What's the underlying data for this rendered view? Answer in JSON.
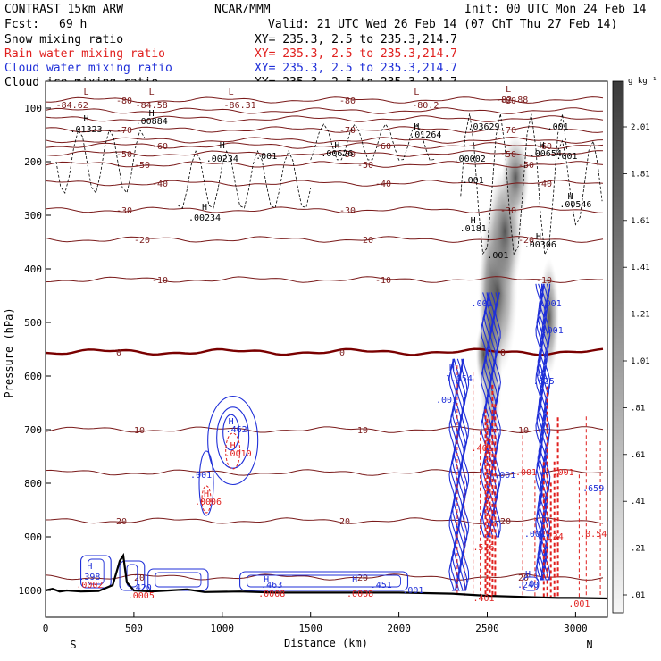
{
  "header": {
    "title": "CONTRAST 15km ARW",
    "center": "NCAR/MMM",
    "init": "Init: 00 UTC Mon 24 Feb 14",
    "fcst_label": "Fcst:",
    "fcst_value": "69 h",
    "valid": "Valid: 21 UTC Wed 26 Feb 14 (07 ChT Thu 27 Feb 14)"
  },
  "fields": [
    {
      "name": "Snow mixing ratio",
      "xy": "XY= 235.3,  2.5 to 235.3,214.7",
      "color": "#000000"
    },
    {
      "name": "Rain water mixing ratio",
      "xy": "XY= 235.3,  2.5 to 235.3,214.7",
      "color": "#e0201e"
    },
    {
      "name": "Cloud water mixing ratio",
      "xy": "XY= 235.3,  2.5 to 235.3,214.7",
      "color": "#1f2fd8"
    },
    {
      "name": "Cloud ice mixing ratio",
      "xy": "XY= 235.3,  2.5 to 235.3,214.7",
      "color": "#000000"
    }
  ],
  "colors": {
    "temperature": "#7a1a1a",
    "zero_isotherm": "#7a0000",
    "rain": "#e0201e",
    "cloud": "#1f2fd8",
    "ice": "#000000",
    "terrain": "#000000"
  },
  "chart_data": {
    "type": "cross-section",
    "xlabel": "Distance (km)",
    "ylabel": "Pressure (hPa)",
    "xlim": [
      0,
      3180
    ],
    "ylim": [
      1050,
      50
    ],
    "x_ticks": [
      0,
      500,
      1000,
      1500,
      2000,
      2500,
      3000
    ],
    "y_ticks": [
      100,
      200,
      300,
      400,
      500,
      600,
      700,
      800,
      900,
      1000
    ],
    "end_labels": {
      "left": "S",
      "right": "N"
    },
    "colorbar": {
      "unit": "g kg⁻¹",
      "ticks": [
        "2.01",
        "1.81",
        "1.61",
        "1.41",
        "1.21",
        "1.01",
        ".81",
        ".61",
        ".41",
        ".21",
        ".01"
      ],
      "range": [
        0.01,
        2.11
      ]
    },
    "terrain": {
      "x": [
        0,
        40,
        80,
        120,
        200,
        300,
        380,
        420,
        440,
        460,
        500,
        600,
        700,
        800,
        900,
        1100,
        1300,
        1600,
        2000,
        2300,
        2500,
        2700,
        2900,
        3000,
        3180
      ],
      "p": [
        1000,
        997,
        1002,
        1000,
        1002,
        1001,
        990,
        945,
        935,
        985,
        1000,
        1002,
        1000,
        998,
        1003,
        1002,
        1004,
        1004,
        1004,
        1006,
        1010,
        1012,
        1014,
        1014,
        1015
      ]
    },
    "isotherms": [
      {
        "temp": "-80",
        "p": 85
      },
      {
        "temp": "",
        "p": 105
      },
      {
        "temp": "",
        "p": 120
      },
      {
        "temp": "-70",
        "p": 140
      },
      {
        "temp": "",
        "p": 160
      },
      {
        "temp": "-60",
        "p": 170
      },
      {
        "temp": "-50",
        "p": 185
      },
      {
        "temp": "-50",
        "p": 205
      },
      {
        "temp": "-40",
        "p": 240
      },
      {
        "temp": "-30",
        "p": 290
      },
      {
        "temp": "-20",
        "p": 345
      },
      {
        "temp": "-10",
        "p": 420
      },
      {
        "temp": "0",
        "p": 555
      },
      {
        "temp": "10",
        "p": 700
      },
      {
        "temp": "",
        "p": 780
      },
      {
        "temp": "20",
        "p": 870
      },
      {
        "temp": "20",
        "p": 975
      }
    ],
    "labels": [
      {
        "text": "L",
        "x": 230,
        "p": 75,
        "kind": "temp"
      },
      {
        "text": "-84.62",
        "x": 150,
        "p": 100,
        "kind": "temp"
      },
      {
        "text": "L",
        "x": 600,
        "p": 75,
        "kind": "temp"
      },
      {
        "text": "-84.58",
        "x": 600,
        "p": 100,
        "kind": "temp"
      },
      {
        "text": "L",
        "x": 1050,
        "p": 75,
        "kind": "temp"
      },
      {
        "text": "-86.31",
        "x": 1100,
        "p": 100,
        "kind": "temp"
      },
      {
        "text": "L",
        "x": 2100,
        "p": 75,
        "kind": "temp"
      },
      {
        "text": "-80.2",
        "x": 2150,
        "p": 100,
        "kind": "temp"
      },
      {
        "text": "L",
        "x": 2620,
        "p": 70,
        "kind": "temp"
      },
      {
        "text": "-82.88",
        "x": 2640,
        "p": 90,
        "kind": "temp"
      },
      {
        "text": "H",
        "x": 230,
        "p": 125,
        "kind": "ice"
      },
      {
        "text": ".01323",
        "x": 230,
        "p": 145,
        "kind": "ice"
      },
      {
        "text": "H",
        "x": 600,
        "p": 115,
        "kind": "ice"
      },
      {
        "text": ".00884",
        "x": 600,
        "p": 130,
        "kind": "ice"
      },
      {
        "text": "H",
        "x": 1000,
        "p": 175,
        "kind": "ice"
      },
      {
        "text": ".00234",
        "x": 1000,
        "p": 200,
        "kind": "ice"
      },
      {
        "text": ".001",
        "x": 1250,
        "p": 195,
        "kind": "ice"
      },
      {
        "text": "H",
        "x": 1650,
        "p": 175,
        "kind": "ice"
      },
      {
        "text": ".00626",
        "x": 1650,
        "p": 190,
        "kind": "ice"
      },
      {
        "text": "H",
        "x": 2100,
        "p": 140,
        "kind": "ice"
      },
      {
        "text": ".01264",
        "x": 2150,
        "p": 155,
        "kind": "ice"
      },
      {
        "text": ".03629",
        "x": 2480,
        "p": 140,
        "kind": "ice"
      },
      {
        "text": ".00002",
        "x": 2400,
        "p": 200,
        "kind": "ice"
      },
      {
        "text": ".001",
        "x": 2420,
        "p": 240,
        "kind": "ice"
      },
      {
        "text": "H",
        "x": 2810,
        "p": 175,
        "kind": "ice"
      },
      {
        "text": ".00654",
        "x": 2830,
        "p": 190,
        "kind": "ice"
      },
      {
        "text": ".001",
        "x": 2900,
        "p": 140,
        "kind": "ice"
      },
      {
        "text": "H",
        "x": 900,
        "p": 290,
        "kind": "ice"
      },
      {
        "text": ".00234",
        "x": 900,
        "p": 310,
        "kind": "ice"
      },
      {
        "text": "H",
        "x": 2420,
        "p": 315,
        "kind": "ice"
      },
      {
        "text": ".0181",
        "x": 2420,
        "p": 330,
        "kind": "ice"
      },
      {
        "text": ".001",
        "x": 2560,
        "p": 380,
        "kind": "ice"
      },
      {
        "text": "H",
        "x": 2790,
        "p": 345,
        "kind": "ice"
      },
      {
        "text": ".00306",
        "x": 2800,
        "p": 360,
        "kind": "ice"
      },
      {
        "text": "H",
        "x": 2970,
        "p": 270,
        "kind": "ice"
      },
      {
        "text": ".00546",
        "x": 3000,
        "p": 285,
        "kind": "ice"
      },
      {
        "text": ".001",
        "x": 2950,
        "p": 195,
        "kind": "ice"
      },
      {
        "text": "H",
        "x": 2300,
        "p": 590,
        "kind": "cloud"
      },
      {
        "text": "1.054",
        "x": 2340,
        "p": 610,
        "kind": "cloud"
      },
      {
        "text": ".001",
        "x": 2270,
        "p": 650,
        "kind": "cloud"
      },
      {
        "text": ".001",
        "x": 2470,
        "p": 470,
        "kind": "cloud"
      },
      {
        "text": ".001",
        "x": 2860,
        "p": 470,
        "kind": "cloud"
      },
      {
        "text": ".001",
        "x": 2870,
        "p": 520,
        "kind": "cloud"
      },
      {
        "text": "H",
        "x": 2800,
        "p": 600,
        "kind": "cloud"
      },
      {
        "text": ".625",
        "x": 2820,
        "p": 615,
        "kind": "cloud"
      },
      {
        "text": ".001",
        "x": 2600,
        "p": 790,
        "kind": "cloud"
      },
      {
        "text": ".001",
        "x": 2770,
        "p": 900,
        "kind": "cloud"
      },
      {
        "text": ".659",
        "x": 3100,
        "p": 815,
        "kind": "cloud"
      },
      {
        "text": "H",
        "x": 1050,
        "p": 690,
        "kind": "cloud"
      },
      {
        "text": ".462",
        "x": 1080,
        "p": 705,
        "kind": "cloud"
      },
      {
        "text": ".001",
        "x": 880,
        "p": 790,
        "kind": "cloud"
      },
      {
        "text": "H",
        "x": 250,
        "p": 960,
        "kind": "cloud"
      },
      {
        "text": ".398",
        "x": 250,
        "p": 980,
        "kind": "cloud"
      },
      {
        "text": ".420",
        "x": 540,
        "p": 1000,
        "kind": "cloud"
      },
      {
        "text": "H",
        "x": 1250,
        "p": 985,
        "kind": "cloud"
      },
      {
        "text": ".463",
        "x": 1280,
        "p": 995,
        "kind": "cloud"
      },
      {
        "text": "H",
        "x": 1750,
        "p": 985,
        "kind": "cloud"
      },
      {
        "text": ".451",
        "x": 1900,
        "p": 995,
        "kind": "cloud"
      },
      {
        "text": ".001",
        "x": 2080,
        "p": 1005,
        "kind": "cloud"
      },
      {
        "text": "H",
        "x": 2730,
        "p": 975,
        "kind": "cloud"
      },
      {
        "text": ".240",
        "x": 2730,
        "p": 995,
        "kind": "cloud"
      },
      {
        "text": "H",
        "x": 1060,
        "p": 735,
        "kind": "rain"
      },
      {
        "text": ".0010",
        "x": 1090,
        "p": 750,
        "kind": "rain"
      },
      {
        "text": "H",
        "x": 910,
        "p": 825,
        "kind": "rain"
      },
      {
        "text": ".0006",
        "x": 920,
        "p": 840,
        "kind": "rain"
      },
      {
        "text": ".0002",
        "x": 250,
        "p": 995,
        "kind": "rain"
      },
      {
        "text": ".0005",
        "x": 540,
        "p": 1015,
        "kind": "rain"
      },
      {
        "text": ".0008",
        "x": 1280,
        "p": 1012,
        "kind": "rain"
      },
      {
        "text": ".0008",
        "x": 1780,
        "p": 1012,
        "kind": "rain"
      },
      {
        "text": ".401",
        "x": 2470,
        "p": 740,
        "kind": "rain"
      },
      {
        "text": ".001",
        "x": 2720,
        "p": 785,
        "kind": "rain"
      },
      {
        "text": ".001",
        "x": 2930,
        "p": 785,
        "kind": "rain"
      },
      {
        "text": ".516",
        "x": 2480,
        "p": 925,
        "kind": "rain"
      },
      {
        "text": ".401",
        "x": 2480,
        "p": 1020,
        "kind": "rain"
      },
      {
        "text": ".134",
        "x": 2870,
        "p": 905,
        "kind": "rain"
      },
      {
        "text": ".0.54",
        "x": 3100,
        "p": 900,
        "kind": "rain"
      },
      {
        "text": ".001",
        "x": 3020,
        "p": 1030,
        "kind": "rain"
      }
    ]
  }
}
